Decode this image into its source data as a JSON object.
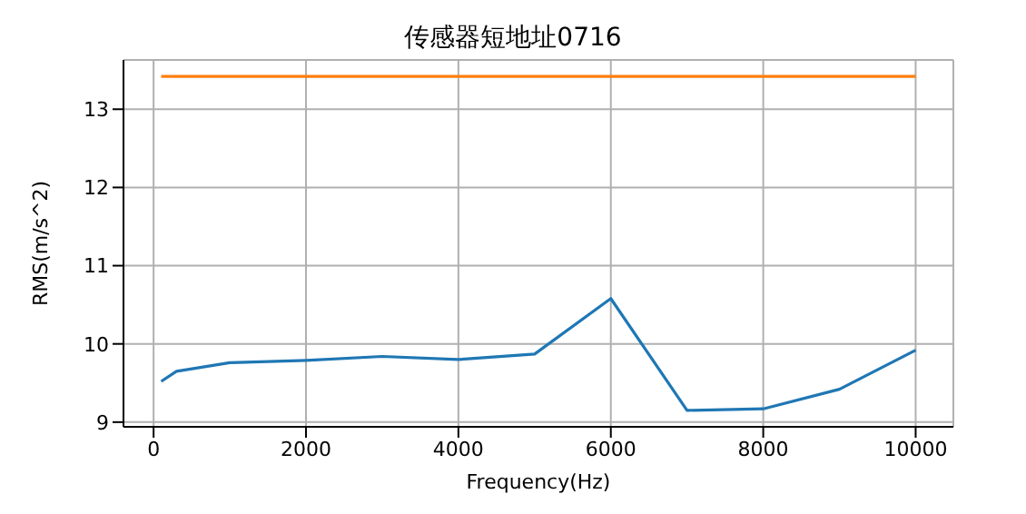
{
  "chart_data": {
    "type": "line",
    "title": "传感器短地址0716",
    "xlabel": "Frequency(Hz)",
    "ylabel": "RMS(m/s^2)",
    "x": [
      100,
      300,
      1000,
      2000,
      3000,
      4000,
      5000,
      6000,
      7000,
      8000,
      9000,
      10000
    ],
    "series": [
      {
        "color": "#1f77b4",
        "values": [
          9.52,
          9.65,
          9.76,
          9.79,
          9.84,
          9.8,
          9.87,
          10.58,
          9.15,
          9.17,
          9.42,
          9.92
        ]
      },
      {
        "color": "#ff7f0e",
        "x": [
          100,
          10000
        ],
        "values": [
          13.42,
          13.42
        ]
      }
    ],
    "xlim": [
      -395,
      10495
    ],
    "ylim": [
      8.94,
      13.63
    ],
    "xticks": [
      0,
      2000,
      4000,
      6000,
      8000,
      10000
    ],
    "yticks": [
      9,
      10,
      11,
      12,
      13
    ],
    "grid": true,
    "legend": false,
    "marker": "none",
    "line_style": "solid"
  }
}
